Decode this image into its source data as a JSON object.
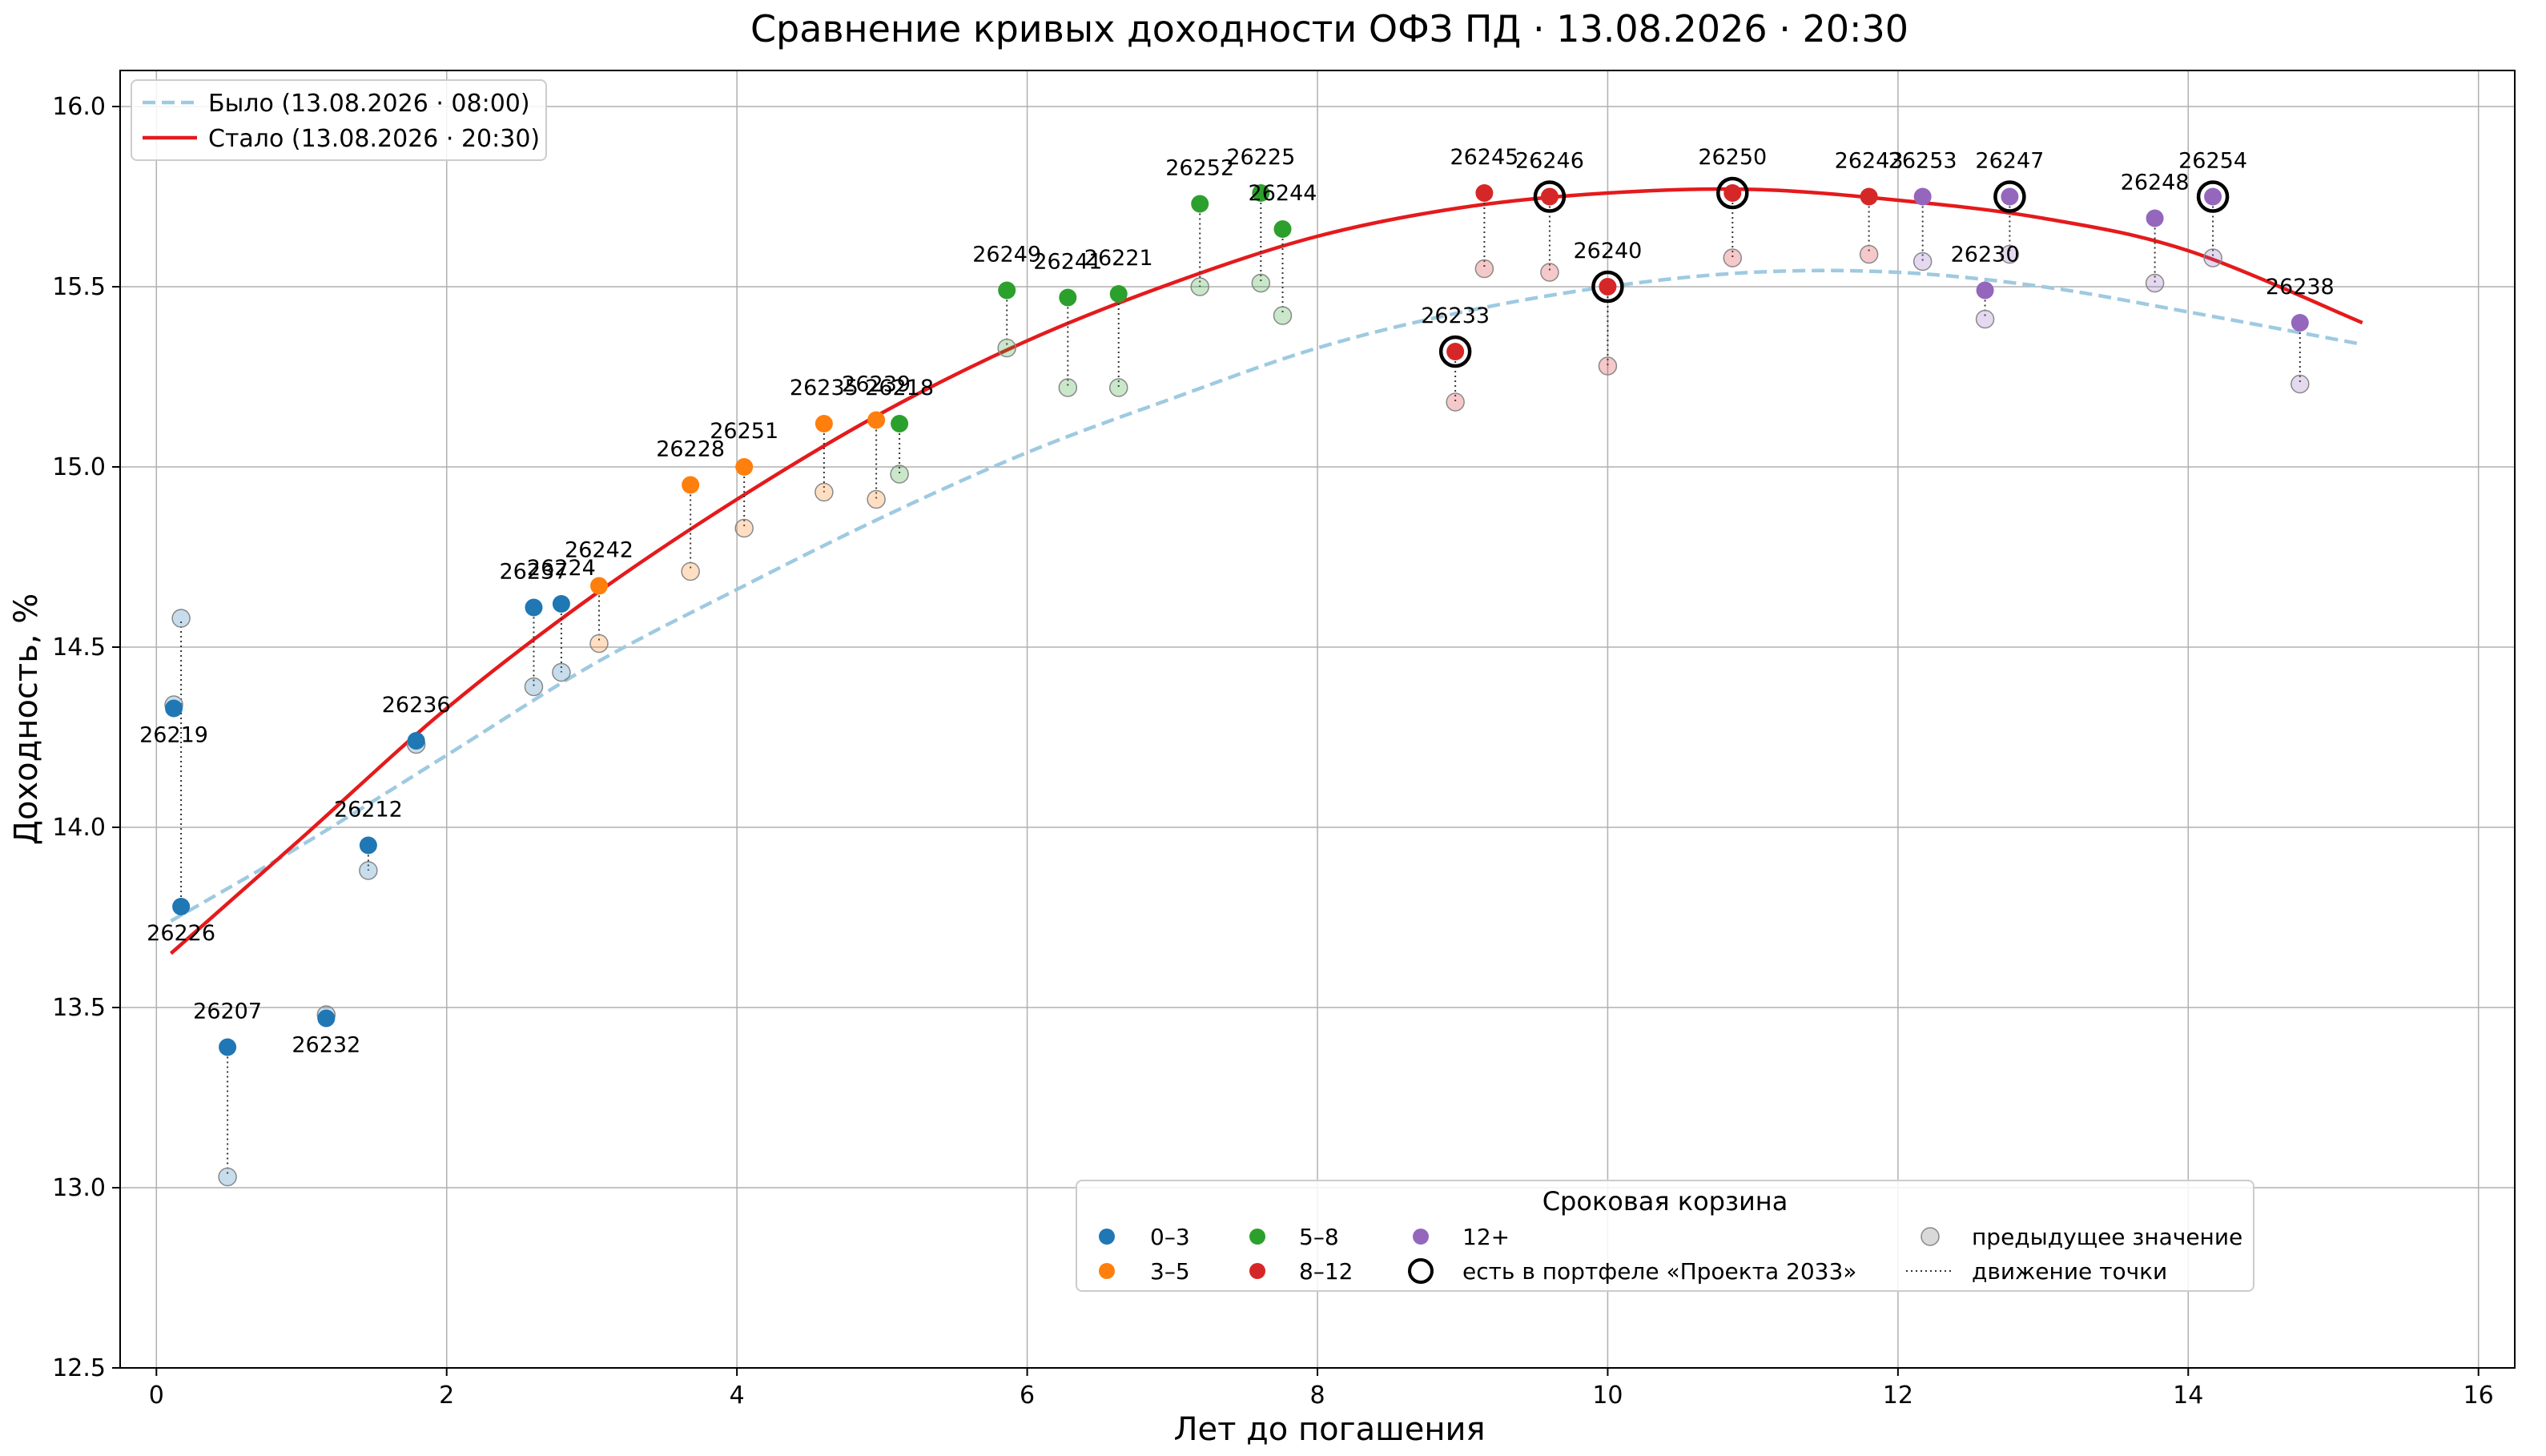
{
  "chart_data": {
    "type": "scatter",
    "title": "Сравнение кривых доходности ОФЗ ПД · 13.08.2026 · 20:30",
    "xlabel": "Лет до погашения",
    "ylabel": "Доходность, %",
    "xlim": [
      -0.25,
      16.25
    ],
    "ylim": [
      12.5,
      16.1
    ],
    "xticks": [
      "0",
      "2",
      "4",
      "6",
      "8",
      "10",
      "12",
      "14",
      "16"
    ],
    "yticks": [
      "12.5",
      "13.0",
      "13.5",
      "14.0",
      "14.5",
      "15.0",
      "15.5",
      "16.0"
    ],
    "grid": true,
    "curves": [
      {
        "name": "Было (13.08.2026 · 08:00)",
        "style": "dashed",
        "color": "#9ecae1",
        "x": [
          0.1,
          1,
          2,
          3,
          4,
          5,
          6,
          7,
          8,
          9,
          10,
          11,
          12,
          13,
          14,
          15.2
        ],
        "y": [
          13.74,
          13.95,
          14.2,
          14.45,
          14.66,
          14.86,
          15.04,
          15.19,
          15.33,
          15.43,
          15.5,
          15.54,
          15.54,
          15.5,
          15.43,
          15.34
        ]
      },
      {
        "name": "Стало (13.08.2026 · 20:30)",
        "style": "solid",
        "color": "#e41a1c",
        "x": [
          0.1,
          1,
          2,
          3,
          4,
          5,
          6,
          7,
          8,
          9,
          10,
          11,
          12,
          13,
          14,
          15.2
        ],
        "y": [
          13.65,
          13.97,
          14.33,
          14.64,
          14.91,
          15.15,
          15.35,
          15.51,
          15.64,
          15.72,
          15.76,
          15.77,
          15.74,
          15.69,
          15.6,
          15.4
        ]
      }
    ],
    "points": [
      {
        "id": "26219",
        "x": 0.12,
        "y": 14.33,
        "prev": 14.34,
        "bucket": "0–3"
      },
      {
        "id": "26226",
        "x": 0.17,
        "y": 13.78,
        "prev": 14.58,
        "bucket": "0–3"
      },
      {
        "id": "26207",
        "x": 0.49,
        "y": 13.39,
        "prev": 13.03,
        "bucket": "0–3"
      },
      {
        "id": "26232",
        "x": 1.17,
        "y": 13.47,
        "prev": 13.48,
        "bucket": "0–3"
      },
      {
        "id": "26212",
        "x": 1.46,
        "y": 13.95,
        "prev": 13.88,
        "bucket": "0–3"
      },
      {
        "id": "26236",
        "x": 1.79,
        "y": 14.24,
        "prev": 14.23,
        "bucket": "0–3"
      },
      {
        "id": "26237",
        "x": 2.6,
        "y": 14.61,
        "prev": 14.39,
        "bucket": "0–3"
      },
      {
        "id": "26224",
        "x": 2.79,
        "y": 14.62,
        "prev": 14.43,
        "bucket": "0–3"
      },
      {
        "id": "26242",
        "x": 3.05,
        "y": 14.67,
        "prev": 14.51,
        "bucket": "3–5"
      },
      {
        "id": "26228",
        "x": 3.68,
        "y": 14.95,
        "prev": 14.71,
        "bucket": "3–5"
      },
      {
        "id": "26251",
        "x": 4.05,
        "y": 15.0,
        "prev": 14.83,
        "bucket": "3–5"
      },
      {
        "id": "26235",
        "x": 4.6,
        "y": 15.12,
        "prev": 14.93,
        "bucket": "3–5"
      },
      {
        "id": "26239",
        "x": 4.96,
        "y": 15.13,
        "prev": 14.91,
        "bucket": "3–5"
      },
      {
        "id": "26218",
        "x": 5.12,
        "y": 15.12,
        "prev": 14.98,
        "bucket": "5–8"
      },
      {
        "id": "26249",
        "x": 5.86,
        "y": 15.49,
        "prev": 15.33,
        "bucket": "5–8"
      },
      {
        "id": "26241",
        "x": 6.28,
        "y": 15.47,
        "prev": 15.22,
        "bucket": "5–8"
      },
      {
        "id": "26221",
        "x": 6.63,
        "y": 15.48,
        "prev": 15.22,
        "bucket": "5–8"
      },
      {
        "id": "26252",
        "x": 7.19,
        "y": 15.73,
        "prev": 15.5,
        "bucket": "5–8"
      },
      {
        "id": "26225",
        "x": 7.61,
        "y": 15.76,
        "prev": 15.51,
        "bucket": "5–8"
      },
      {
        "id": "26244",
        "x": 7.76,
        "y": 15.66,
        "prev": 15.42,
        "bucket": "5–8"
      },
      {
        "id": "26233",
        "x": 8.95,
        "y": 15.32,
        "prev": 15.18,
        "bucket": "8–12",
        "portfolio": true
      },
      {
        "id": "26245",
        "x": 9.15,
        "y": 15.76,
        "prev": 15.55,
        "bucket": "8–12"
      },
      {
        "id": "26246",
        "x": 9.6,
        "y": 15.75,
        "prev": 15.54,
        "bucket": "8–12",
        "portfolio": true
      },
      {
        "id": "26240",
        "x": 10.0,
        "y": 15.5,
        "prev": 15.28,
        "bucket": "8–12",
        "portfolio": true
      },
      {
        "id": "26250",
        "x": 10.86,
        "y": 15.76,
        "prev": 15.58,
        "bucket": "8–12",
        "portfolio": true
      },
      {
        "id": "26243",
        "x": 11.8,
        "y": 15.75,
        "prev": 15.59,
        "bucket": "8–12"
      },
      {
        "id": "26253",
        "x": 12.17,
        "y": 15.75,
        "prev": 15.57,
        "bucket": "12+"
      },
      {
        "id": "26230",
        "x": 12.6,
        "y": 15.49,
        "prev": 15.41,
        "bucket": "12+"
      },
      {
        "id": "26247",
        "x": 12.77,
        "y": 15.75,
        "prev": 15.59,
        "bucket": "12+",
        "portfolio": true
      },
      {
        "id": "26248",
        "x": 13.77,
        "y": 15.69,
        "prev": 15.51,
        "bucket": "12+"
      },
      {
        "id": "26254",
        "x": 14.17,
        "y": 15.75,
        "prev": 15.58,
        "bucket": "12+",
        "portfolio": true
      },
      {
        "id": "26238",
        "x": 14.77,
        "y": 15.4,
        "prev": 15.23,
        "bucket": "12+"
      }
    ],
    "buckets": [
      {
        "name": "0–3",
        "color": "#1f77b4"
      },
      {
        "name": "3–5",
        "color": "#ff7f0e"
      },
      {
        "name": "5–8",
        "color": "#2ca02c"
      },
      {
        "name": "8–12",
        "color": "#d62728"
      },
      {
        "name": "12+",
        "color": "#9467bd"
      }
    ],
    "legend_top_left": [
      "Было (13.08.2026 · 08:00)",
      "Стало (13.08.2026 · 20:30)"
    ],
    "legend_bottom": {
      "title": "Сроковая корзина",
      "portfolio": "есть в портфеле «Проекта 2033»",
      "previous": "предыдущее значение",
      "movement": "движение точки"
    }
  }
}
